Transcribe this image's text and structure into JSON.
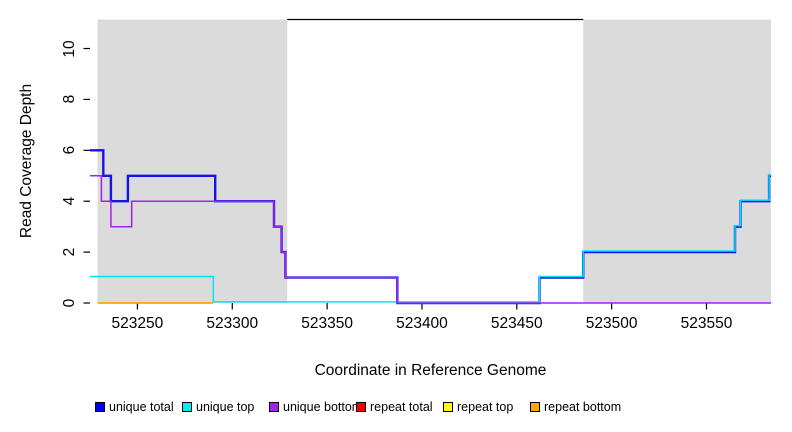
{
  "chart": {
    "xlabel": "Coordinate in Reference Genome",
    "ylabel": "Read Coverage Depth"
  },
  "chart_data": {
    "type": "line",
    "subtype": "step",
    "title": "",
    "xlabel": "Coordinate in Reference Genome",
    "ylabel": "Read Coverage Depth",
    "xlim": [
      523225,
      523584
    ],
    "ylim": [
      0,
      11.14
    ],
    "xticks": [
      523250,
      523300,
      523350,
      523400,
      523450,
      523500,
      523550
    ],
    "yticks": [
      0,
      2,
      4,
      6,
      8,
      10
    ],
    "grid": false,
    "legend_position": "bottom",
    "background_color": "#ffffff",
    "shaded_region_color": "#dbdbdb",
    "shaded_regions": [
      {
        "name": "left-shaded-region",
        "x0": 523229,
        "x1": 523329
      },
      {
        "name": "right-shaded-region",
        "x0": 523485,
        "x1": 523584
      }
    ],
    "gap_top_line": {
      "x0": 523329,
      "x1": 523485,
      "y": 11.14,
      "color": "#000000"
    },
    "series": [
      {
        "name": "repeat total",
        "color": "#ee0000",
        "width": 1.5,
        "dy": 0,
        "points": []
      },
      {
        "name": "repeat top",
        "color": "#ffff00",
        "width": 1.5,
        "dy": 0,
        "points": []
      },
      {
        "name": "repeat bottom",
        "color": "#ffa500",
        "width": 1.7,
        "dy": 0,
        "points": [
          [
            523229,
            0
          ],
          [
            523290,
            0
          ]
        ]
      },
      {
        "name": "unique total",
        "color": "#1414e6",
        "width": 2.4,
        "dy": 0,
        "points": [
          [
            523225,
            6
          ],
          [
            523232,
            6
          ],
          [
            523232,
            5
          ],
          [
            523236,
            5
          ],
          [
            523236,
            4
          ],
          [
            523245,
            4
          ],
          [
            523245,
            5
          ],
          [
            523291,
            5
          ],
          [
            523291,
            4
          ],
          [
            523322,
            4
          ],
          [
            523322,
            3
          ],
          [
            523326,
            3
          ],
          [
            523326,
            2
          ],
          [
            523328,
            2
          ],
          [
            523328,
            1
          ],
          [
            523387,
            1
          ],
          [
            523387,
            0
          ],
          [
            523462,
            0
          ],
          [
            523462,
            1
          ],
          [
            523485,
            1
          ],
          [
            523485,
            2
          ],
          [
            523565,
            2
          ],
          [
            523565,
            3
          ],
          [
            523568,
            3
          ],
          [
            523568,
            4
          ],
          [
            523583,
            4
          ],
          [
            523583,
            5
          ],
          [
            523584,
            5
          ]
        ]
      },
      {
        "name": "unique top",
        "color": "#00e5ee",
        "width": 1.5,
        "dy": -1.1,
        "points": [
          [
            523225,
            1
          ],
          [
            523290,
            1
          ],
          [
            523290,
            0
          ],
          [
            523462,
            0
          ],
          [
            523462,
            1
          ],
          [
            523485,
            1
          ],
          [
            523485,
            2
          ],
          [
            523565,
            2
          ],
          [
            523565,
            3
          ],
          [
            523568,
            3
          ],
          [
            523568,
            4
          ],
          [
            523583,
            4
          ],
          [
            523583,
            5
          ],
          [
            523584,
            5
          ]
        ]
      },
      {
        "name": "unique bottom",
        "color": "#a020f0",
        "width": 1.5,
        "dy": 0,
        "points": [
          [
            523225,
            5
          ],
          [
            523231,
            5
          ],
          [
            523231,
            4
          ],
          [
            523236,
            4
          ],
          [
            523236,
            3
          ],
          [
            523247,
            3
          ],
          [
            523247,
            4
          ],
          [
            523322,
            4
          ],
          [
            523322,
            3
          ],
          [
            523326,
            3
          ],
          [
            523326,
            2
          ],
          [
            523328,
            2
          ],
          [
            523328,
            1
          ],
          [
            523387,
            1
          ],
          [
            523387,
            0
          ],
          [
            523584,
            0
          ]
        ]
      }
    ],
    "legend": [
      {
        "label": "unique total",
        "color": "#0000ee"
      },
      {
        "label": "unique top",
        "color": "#00eeee"
      },
      {
        "label": "unique bottom",
        "color": "#a020f0"
      },
      {
        "label": "repeat total",
        "color": "#ee0000"
      },
      {
        "label": "repeat top",
        "color": "#ffff00"
      },
      {
        "label": "repeat bottom",
        "color": "#ffa500"
      }
    ]
  }
}
